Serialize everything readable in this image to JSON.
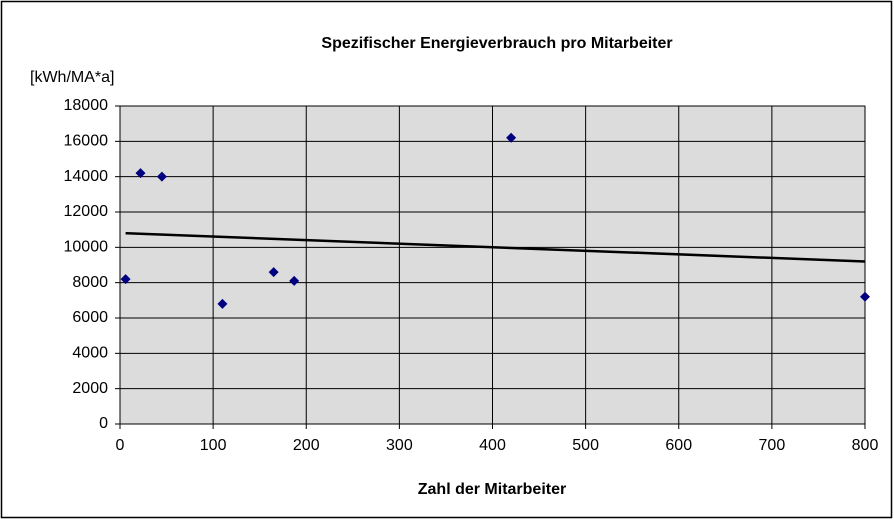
{
  "chart_data": {
    "type": "scatter",
    "title": "Spezifischer Energieverbrauch pro Mitarbeiter",
    "y_label": "[kWh/MA*a]",
    "x_label": "Zahl der Mitarbeiter",
    "x": [
      6,
      22,
      45,
      110,
      165,
      187,
      420,
      800
    ],
    "values": [
      8200,
      14200,
      14000,
      6800,
      8600,
      8100,
      16200,
      7200
    ],
    "color": "#000080",
    "trendline": {
      "x": [
        6,
        800
      ],
      "values": [
        10800,
        9200
      ],
      "color": "#000000"
    },
    "xlim": [
      0,
      800
    ],
    "xticks": [
      0,
      100,
      200,
      300,
      400,
      500,
      600,
      700,
      800
    ],
    "ylim": [
      0,
      18000
    ],
    "yticks": [
      0,
      2000,
      4000,
      6000,
      8000,
      10000,
      12000,
      14000,
      16000,
      18000
    ],
    "grid": true
  }
}
